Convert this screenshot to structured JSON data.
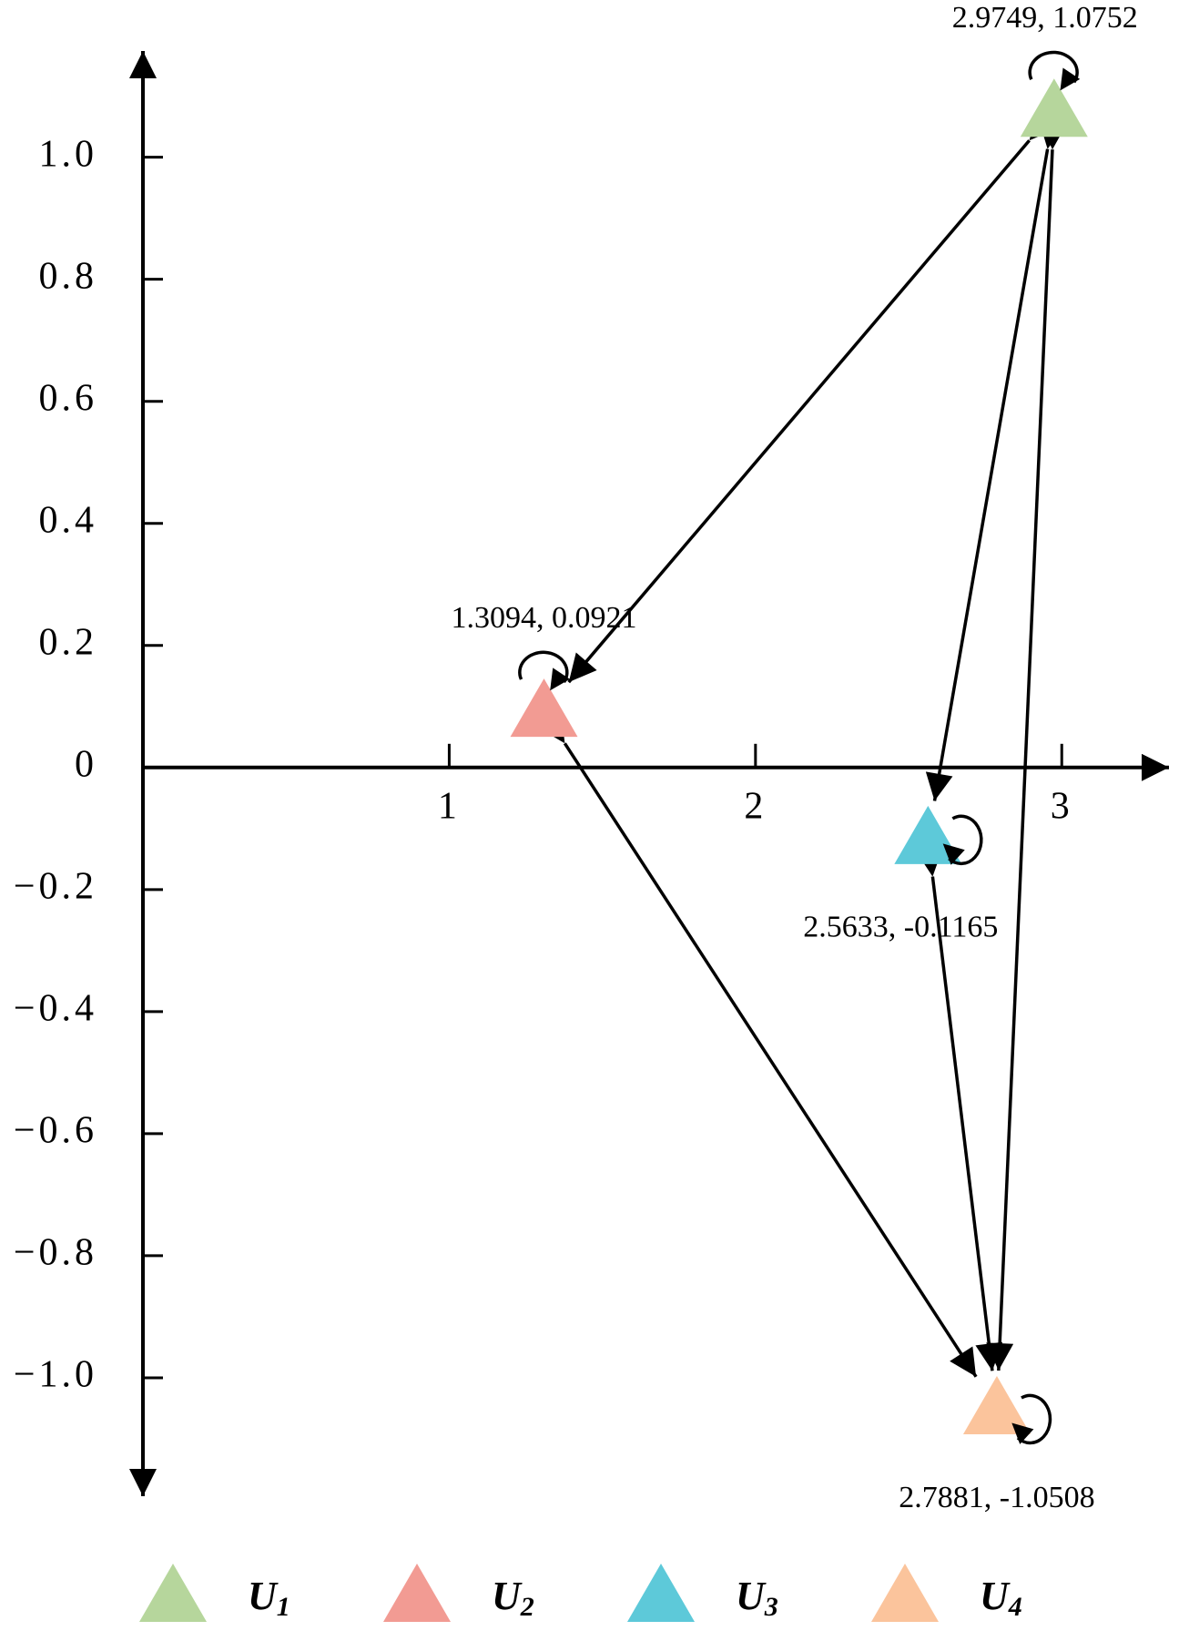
{
  "chart_data": {
    "type": "scatter",
    "series": [
      {
        "name": "U1",
        "color": "#b6d69c",
        "x": [
          2.9749
        ],
        "values": [
          1.0752
        ],
        "value_labels": [
          "2.9749, 1.0752"
        ]
      },
      {
        "name": "U2",
        "color": "#f29b93",
        "x": [
          1.3094
        ],
        "values": [
          0.0921
        ],
        "value_labels": [
          "1.3094, 0.0921"
        ]
      },
      {
        "name": "U3",
        "color": "#5dc9d9",
        "x": [
          2.5633
        ],
        "values": [
          -0.1165
        ],
        "value_labels": [
          "2.5633, -0.1165"
        ]
      },
      {
        "name": "U4",
        "color": "#fbc49c",
        "x": [
          2.7881
        ],
        "values": [
          -1.0508
        ],
        "value_labels": [
          "2.7881, -1.0508"
        ]
      }
    ],
    "xlim": [
      0,
      3.35
    ],
    "ylim": [
      -1.2,
      1.18
    ],
    "xticks": [
      1,
      2,
      3
    ],
    "yticks": [
      {
        "value": 1.0,
        "label": "1.0"
      },
      {
        "value": 0.8,
        "label": "0.8"
      },
      {
        "value": 0.6,
        "label": "0.6"
      },
      {
        "value": 0.4,
        "label": "0.4"
      },
      {
        "value": 0.2,
        "label": "0.2"
      },
      0,
      {
        "value": -0.2,
        "label": "−0.2"
      },
      {
        "value": -0.4,
        "label": "−0.4"
      },
      {
        "value": -0.6,
        "label": "−0.6"
      },
      {
        "value": -0.8,
        "label": "−0.8"
      },
      {
        "value": -1.0,
        "label": "−1.0"
      }
    ]
  }
}
